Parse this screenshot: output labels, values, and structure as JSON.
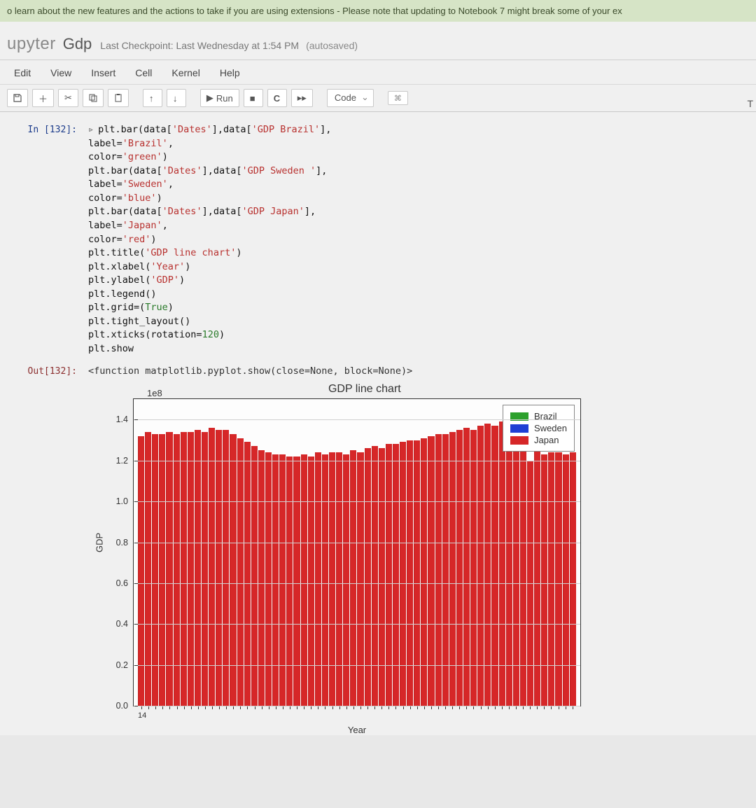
{
  "banner_text": "o learn about the new features and the actions to take if you are using extensions - Please note that updating to Notebook 7 might break some of your ex",
  "header": {
    "logo": "upyter",
    "notebook_name": "Gdp",
    "checkpoint": "Last Checkpoint: Last Wednesday at 1:54 PM",
    "autosaved": "(autosaved)",
    "trusted_partial": "T"
  },
  "menu": {
    "items": [
      "Edit",
      "View",
      "Insert",
      "Cell",
      "Kernel",
      "Help"
    ]
  },
  "toolbar": {
    "run_label": "Run",
    "celltype": "Code"
  },
  "cell": {
    "in_prompt": "In [132]:",
    "out_prompt": "Out[132]:",
    "code_lines": [
      {
        "pre": "plt.bar(data[",
        "s1": "'Dates'",
        "mid": "],data[",
        "s2": "'GDP Brazil'",
        "post": "],"
      },
      {
        "pre": "label=",
        "s1": "'Brazil'",
        "post": ","
      },
      {
        "pre": "color=",
        "s1": "'green'",
        "post": ")"
      },
      {
        "pre": "plt.bar(data[",
        "s1": "'Dates'",
        "mid": "],data[",
        "s2": "'GDP Sweden '",
        "post": "],"
      },
      {
        "pre": "label=",
        "s1": "'Sweden'",
        "post": ","
      },
      {
        "pre": "color=",
        "s1": "'blue'",
        "post": ")"
      },
      {
        "pre": "plt.bar(data[",
        "s1": "'Dates'",
        "mid": "],data[",
        "s2": "'GDP Japan'",
        "post": "],"
      },
      {
        "pre": "label=",
        "s1": "'Japan'",
        "post": ","
      },
      {
        "pre": "color=",
        "s1": "'red'",
        "post": ")"
      },
      {
        "pre": "plt.title(",
        "s1": "'GDP line chart'",
        "post": ")"
      },
      {
        "pre": "plt.xlabel(",
        "s1": "'Year'",
        "post": ")"
      },
      {
        "pre": "plt.ylabel(",
        "s1": "'GDP'",
        "post": ")"
      },
      {
        "pre": "plt.legend()",
        "post": ""
      },
      {
        "pre": "plt.grid=(",
        "kw": "True",
        "post": ")"
      },
      {
        "pre": "plt.tight_layout()",
        "post": ""
      },
      {
        "pre": "plt.xticks(rotation=",
        "num": "120",
        "post": ")"
      },
      {
        "pre": "plt.show",
        "post": ""
      }
    ],
    "out_text": "<function matplotlib.pyplot.show(close=None, block=None)>"
  },
  "chart": {
    "type": "bar",
    "title": "GDP line chart",
    "scale_note": "1e8",
    "xlabel": "Year",
    "ylabel": "GDP",
    "x_first_tick": "14",
    "ylim": [
      0.0,
      1.5
    ],
    "yticks": [
      0.0,
      0.2,
      0.4,
      0.6,
      0.8,
      1.0,
      1.2,
      1.4
    ],
    "legend": [
      {
        "label": "Brazil",
        "color": "#2ca02c"
      },
      {
        "label": "Sweden",
        "color": "#1f3fd4"
      },
      {
        "label": "Japan",
        "color": "#d62728"
      }
    ],
    "bar_color": "#d62728",
    "background_color": "#fdfdfd",
    "border_color": "#333333",
    "grid_color": "#d0d0d0",
    "n_bars": 62,
    "values": [
      1.32,
      1.34,
      1.33,
      1.33,
      1.34,
      1.33,
      1.34,
      1.34,
      1.35,
      1.34,
      1.36,
      1.35,
      1.35,
      1.33,
      1.31,
      1.29,
      1.27,
      1.25,
      1.24,
      1.23,
      1.23,
      1.22,
      1.22,
      1.23,
      1.22,
      1.24,
      1.23,
      1.24,
      1.24,
      1.23,
      1.25,
      1.24,
      1.26,
      1.27,
      1.26,
      1.28,
      1.28,
      1.29,
      1.3,
      1.3,
      1.31,
      1.32,
      1.33,
      1.33,
      1.34,
      1.35,
      1.36,
      1.35,
      1.37,
      1.38,
      1.37,
      1.39,
      1.4,
      1.39,
      1.38,
      1.2,
      1.25,
      1.23,
      1.24,
      1.24,
      1.23,
      1.24
    ]
  }
}
